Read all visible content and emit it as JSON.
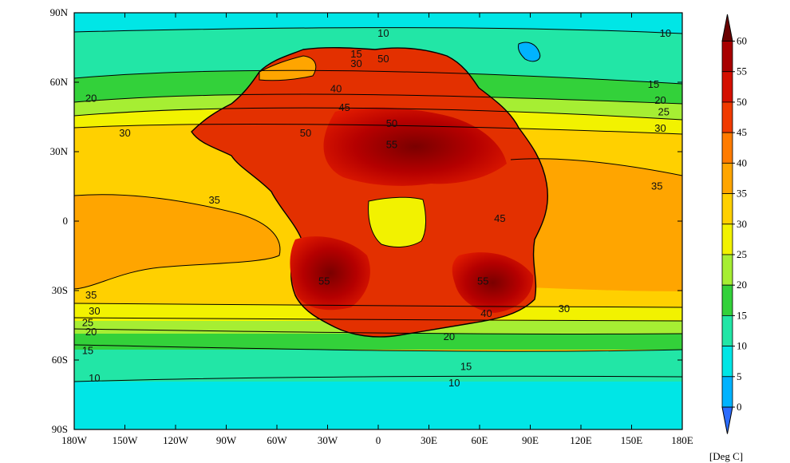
{
  "map": {
    "x_ticks": [
      "180W",
      "150W",
      "120W",
      "90W",
      "60W",
      "30W",
      "0",
      "30E",
      "60E",
      "90E",
      "120E",
      "150E",
      "180E"
    ],
    "y_ticks": [
      "90N",
      "60N",
      "30N",
      "0",
      "30S",
      "60S",
      "90S"
    ],
    "lat_range": [
      -90,
      90
    ],
    "lon_range": [
      -180,
      180
    ],
    "contour_labels": [
      {
        "text": "10",
        "lon": 3,
        "lat": 81
      },
      {
        "text": "10",
        "lon": 170,
        "lat": 81
      },
      {
        "text": "15",
        "lon": -13,
        "lat": 72
      },
      {
        "text": "30",
        "lon": -13,
        "lat": 68
      },
      {
        "text": "50",
        "lon": 3,
        "lat": 70
      },
      {
        "text": "15",
        "lon": 163,
        "lat": 59
      },
      {
        "text": "20",
        "lon": -170,
        "lat": 53
      },
      {
        "text": "20",
        "lon": 167,
        "lat": 52
      },
      {
        "text": "25",
        "lon": 169,
        "lat": 47
      },
      {
        "text": "30",
        "lon": 167,
        "lat": 40
      },
      {
        "text": "30",
        "lon": -150,
        "lat": 38
      },
      {
        "text": "40",
        "lon": -25,
        "lat": 57
      },
      {
        "text": "45",
        "lon": -20,
        "lat": 49
      },
      {
        "text": "50",
        "lon": 8,
        "lat": 42
      },
      {
        "text": "50",
        "lon": -43,
        "lat": 38
      },
      {
        "text": "55",
        "lon": 8,
        "lat": 33
      },
      {
        "text": "35",
        "lon": 165,
        "lat": 15
      },
      {
        "text": "35",
        "lon": -97,
        "lat": 9
      },
      {
        "text": "45",
        "lon": 72,
        "lat": 1
      },
      {
        "text": "35",
        "lon": -170,
        "lat": -32
      },
      {
        "text": "30",
        "lon": -168,
        "lat": -39
      },
      {
        "text": "25",
        "lon": -172,
        "lat": -44
      },
      {
        "text": "20",
        "lon": -170,
        "lat": -48
      },
      {
        "text": "15",
        "lon": -172,
        "lat": -56
      },
      {
        "text": "55",
        "lon": -32,
        "lat": -26
      },
      {
        "text": "55",
        "lon": 62,
        "lat": -26
      },
      {
        "text": "40",
        "lon": 64,
        "lat": -40
      },
      {
        "text": "30",
        "lon": 110,
        "lat": -38
      },
      {
        "text": "20",
        "lon": 42,
        "lat": -50
      },
      {
        "text": "15",
        "lon": 52,
        "lat": -63
      },
      {
        "text": "10",
        "lon": -168,
        "lat": -68
      },
      {
        "text": "10",
        "lon": 45,
        "lat": -70
      }
    ]
  },
  "colorbar": {
    "unit_label": "[Deg C]",
    "levels": [
      "0",
      "5",
      "10",
      "15",
      "20",
      "25",
      "30",
      "35",
      "40",
      "45",
      "50",
      "55",
      "60"
    ],
    "colors": [
      "#2b6cff",
      "#00b3ff",
      "#00e6e6",
      "#22e6a6",
      "#33d13a",
      "#a6ee33",
      "#f2f200",
      "#ffd000",
      "#ffa500",
      "#ff7b00",
      "#f03a00",
      "#d40f00",
      "#a80000",
      "#6a0000"
    ]
  }
}
